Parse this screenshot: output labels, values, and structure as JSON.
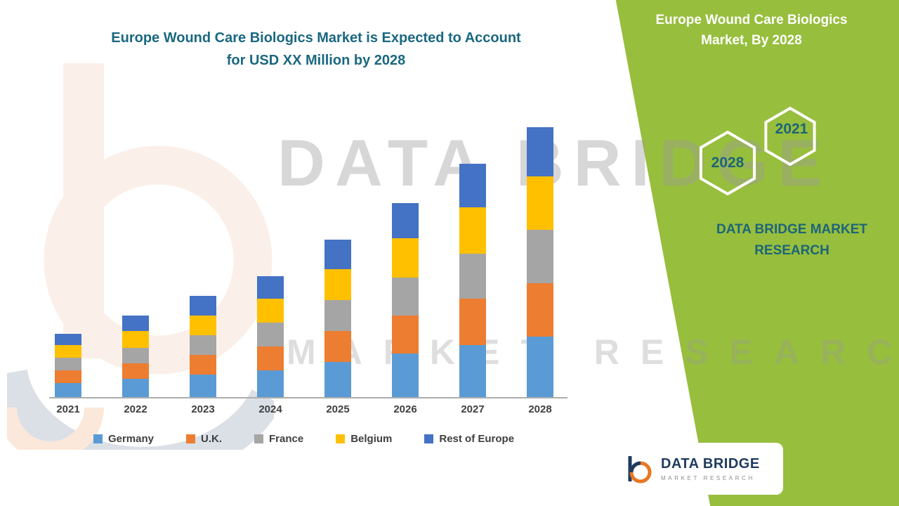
{
  "title": {
    "line1": "Europe Wound Care Biologics Market is Expected to Account",
    "line2": "for USD XX Million by 2028"
  },
  "watermark": {
    "line1": "DATA BRIDGE",
    "line2": "MARKET RESEARCH"
  },
  "right_panel": {
    "title_line1": "Europe Wound Care Biologics",
    "title_line2": "Market, By 2028",
    "hexagon_top_year": "2021",
    "hexagon_bottom_year": "2028",
    "brand_line1": "DATA BRIDGE MARKET",
    "brand_line2": "RESEARCH",
    "green_color": "#97BE3D",
    "text_color": "#1D6578"
  },
  "logo": {
    "name": "DATA BRIDGE",
    "subtext": "MARKET RESEARCH"
  },
  "chart_data": {
    "type": "bar",
    "stacked": true,
    "title": "Europe Wound Care Biologics Market is Expected to Account for USD XX Million by 2028",
    "xlabel": "",
    "ylabel": "",
    "y_axis_visible": false,
    "grid": false,
    "legend_position": "bottom",
    "categories": [
      "2021",
      "2022",
      "2023",
      "2024",
      "2025",
      "2026",
      "2027",
      "2028"
    ],
    "series": [
      {
        "name": "Germany",
        "color": "#5B9BD5",
        "values": [
          10,
          13,
          16,
          19,
          25,
          31,
          37,
          43
        ]
      },
      {
        "name": "U.K.",
        "color": "#ED7D31",
        "values": [
          9,
          11,
          14,
          17,
          22,
          27,
          33,
          38
        ]
      },
      {
        "name": "France",
        "color": "#A5A5A5",
        "values": [
          9,
          11,
          14,
          17,
          22,
          27,
          32,
          38
        ]
      },
      {
        "name": "Belgium",
        "color": "#FFC000",
        "values": [
          9,
          12,
          14,
          17,
          22,
          28,
          33,
          38
        ]
      },
      {
        "name": "Rest of Europe",
        "color": "#4472C4",
        "values": [
          8,
          11,
          14,
          16,
          21,
          25,
          31,
          35
        ]
      }
    ],
    "ylim": [
      0,
      200
    ],
    "note": "Y-axis unlabeled in source; values are relative index estimated from bar heights (actual market value shown as USD XX Million)"
  }
}
